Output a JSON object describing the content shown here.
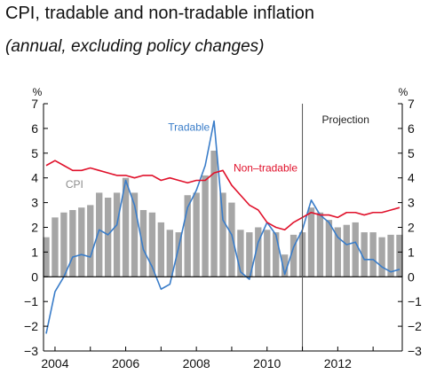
{
  "header": {
    "title": "CPI, tradable and non-tradable inflation",
    "subtitle": "(annual, excluding policy changes)"
  },
  "chart_data": {
    "type": "bar",
    "title": "CPI, tradable and non-tradable inflation",
    "subtitle": "(annual, excluding policy changes)",
    "y_unit": "%",
    "ylim": [
      -3,
      7
    ],
    "y_ticks": [
      -3,
      -2,
      -1,
      0,
      1,
      2,
      3,
      4,
      5,
      6,
      7
    ],
    "x_tick_labels": [
      "2004",
      "2006",
      "2008",
      "2010",
      "2012"
    ],
    "x_tick_years": [
      2004,
      2006,
      2008,
      2010,
      2012
    ],
    "xlim": [
      2003.75,
      2013.75
    ],
    "projection_start": 2011.0,
    "projection_label": "Projection",
    "colors": {
      "cpi": "#a6a6a6",
      "tradable": "#3a7dc9",
      "non_tradable": "#e0112b",
      "projection_line": "#555555"
    },
    "annotations": [
      {
        "text": "CPI",
        "series": "cpi",
        "x": 2004.3,
        "y": 3.6
      },
      {
        "text": "Tradable",
        "series": "tradable",
        "x": 2007.2,
        "y": 5.9
      },
      {
        "text": "Non–tradable",
        "series": "non_tradable",
        "x": 2009.05,
        "y": 4.25
      }
    ],
    "cpi_bars": {
      "x": [
        2003.75,
        2004.0,
        2004.25,
        2004.5,
        2004.75,
        2005.0,
        2005.25,
        2005.5,
        2005.75,
        2006.0,
        2006.25,
        2006.5,
        2006.75,
        2007.0,
        2007.25,
        2007.5,
        2007.75,
        2008.0,
        2008.25,
        2008.5,
        2008.75,
        2009.0,
        2009.25,
        2009.5,
        2009.75,
        2010.0,
        2010.25,
        2010.5,
        2010.75,
        2011.0,
        2011.25,
        2011.5,
        2011.75,
        2012.0,
        2012.25,
        2012.5,
        2012.75,
        2013.0,
        2013.25,
        2013.5,
        2013.75
      ],
      "values": [
        1.6,
        2.4,
        2.6,
        2.7,
        2.8,
        2.9,
        3.4,
        3.2,
        3.4,
        4.0,
        3.4,
        2.7,
        2.6,
        2.2,
        1.9,
        1.8,
        3.3,
        3.4,
        4.1,
        5.1,
        3.4,
        3.0,
        1.9,
        1.8,
        2.0,
        1.9,
        1.8,
        0.9,
        1.7,
        1.8,
        2.8,
        2.6,
        2.3,
        2.0,
        2.1,
        2.2,
        1.8,
        1.8,
        1.6,
        1.7,
        1.7
      ]
    },
    "series": [
      {
        "name": "Tradable",
        "x": [
          2003.75,
          2004.0,
          2004.25,
          2004.5,
          2004.75,
          2005.0,
          2005.25,
          2005.5,
          2005.75,
          2006.0,
          2006.25,
          2006.5,
          2006.75,
          2007.0,
          2007.25,
          2007.5,
          2007.75,
          2008.0,
          2008.25,
          2008.5,
          2008.75,
          2009.0,
          2009.25,
          2009.5,
          2009.75,
          2010.0,
          2010.25,
          2010.5,
          2010.75,
          2011.0,
          2011.25,
          2011.5,
          2011.75,
          2012.0,
          2012.25,
          2012.5,
          2012.75,
          2013.0,
          2013.25,
          2013.5,
          2013.75
        ],
        "values": [
          -2.3,
          -0.6,
          0.0,
          0.8,
          0.9,
          0.8,
          1.9,
          1.7,
          2.1,
          3.9,
          2.9,
          1.1,
          0.4,
          -0.5,
          -0.3,
          1.2,
          2.8,
          3.5,
          4.5,
          6.3,
          2.3,
          1.7,
          0.2,
          -0.1,
          1.4,
          2.2,
          1.7,
          0.1,
          1.2,
          1.9,
          3.1,
          2.5,
          2.2,
          1.6,
          1.3,
          1.4,
          0.7,
          0.7,
          0.4,
          0.2,
          0.3
        ]
      },
      {
        "name": "Non–tradable",
        "x": [
          2003.75,
          2004.0,
          2004.25,
          2004.5,
          2004.75,
          2005.0,
          2005.25,
          2005.5,
          2005.75,
          2006.0,
          2006.25,
          2006.5,
          2006.75,
          2007.0,
          2007.25,
          2007.5,
          2007.75,
          2008.0,
          2008.25,
          2008.5,
          2008.75,
          2009.0,
          2009.25,
          2009.5,
          2009.75,
          2010.0,
          2010.25,
          2010.5,
          2010.75,
          2011.0,
          2011.25,
          2011.5,
          2011.75,
          2012.0,
          2012.25,
          2012.5,
          2012.75,
          2013.0,
          2013.25,
          2013.5,
          2013.75
        ],
        "values": [
          4.5,
          4.7,
          4.5,
          4.3,
          4.3,
          4.4,
          4.3,
          4.2,
          4.1,
          4.1,
          4.0,
          4.1,
          4.1,
          3.9,
          4.0,
          3.9,
          3.8,
          3.9,
          3.9,
          4.2,
          4.3,
          3.7,
          3.3,
          2.9,
          2.7,
          2.2,
          2.0,
          1.9,
          2.2,
          2.4,
          2.6,
          2.5,
          2.5,
          2.4,
          2.6,
          2.6,
          2.5,
          2.6,
          2.6,
          2.7,
          2.8
        ]
      }
    ]
  }
}
